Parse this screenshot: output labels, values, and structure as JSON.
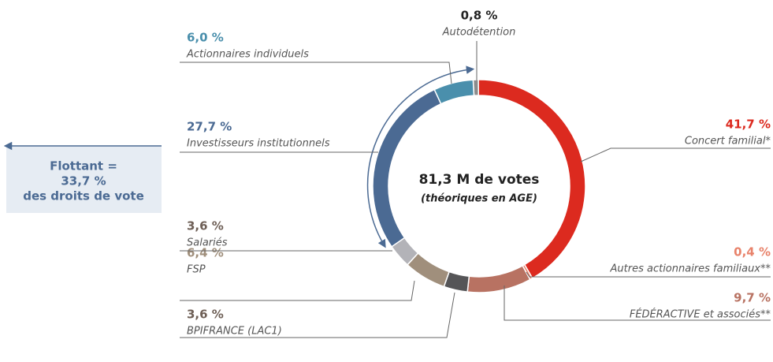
{
  "chart_data": {
    "type": "donut",
    "center_title": "81,3 M de votes",
    "center_subtitle": "(théoriques en AGE)",
    "annotation": {
      "lines": [
        "Flottant =",
        "33,7 %",
        "des droits de vote"
      ]
    },
    "categories": [
      "Autodétention",
      "Concert familial*",
      "Autres actionnaires familiaux**",
      "FÉDÉRACTIVE et associés**",
      "BPIFRANCE (LAC1)",
      "FSP",
      "Salariés",
      "Investisseurs institutionnels",
      "Actionnaires individuels"
    ],
    "values": [
      0.8,
      41.7,
      0.4,
      9.7,
      3.6,
      6.4,
      3.6,
      27.7,
      6.0
    ],
    "value_labels": [
      "0,8 %",
      "41,7 %",
      "0,4 %",
      "9,7 %",
      "3,6 %",
      "6,4 %",
      "3,6 %",
      "27,7 %",
      "6,0 %"
    ],
    "colors": [
      "#8c8c8c",
      "#dc2a1f",
      "#e8826a",
      "#b87262",
      "#555557",
      "#a08f7c",
      "#b3b3b8",
      "#4b6a93",
      "#4a8fac"
    ]
  }
}
